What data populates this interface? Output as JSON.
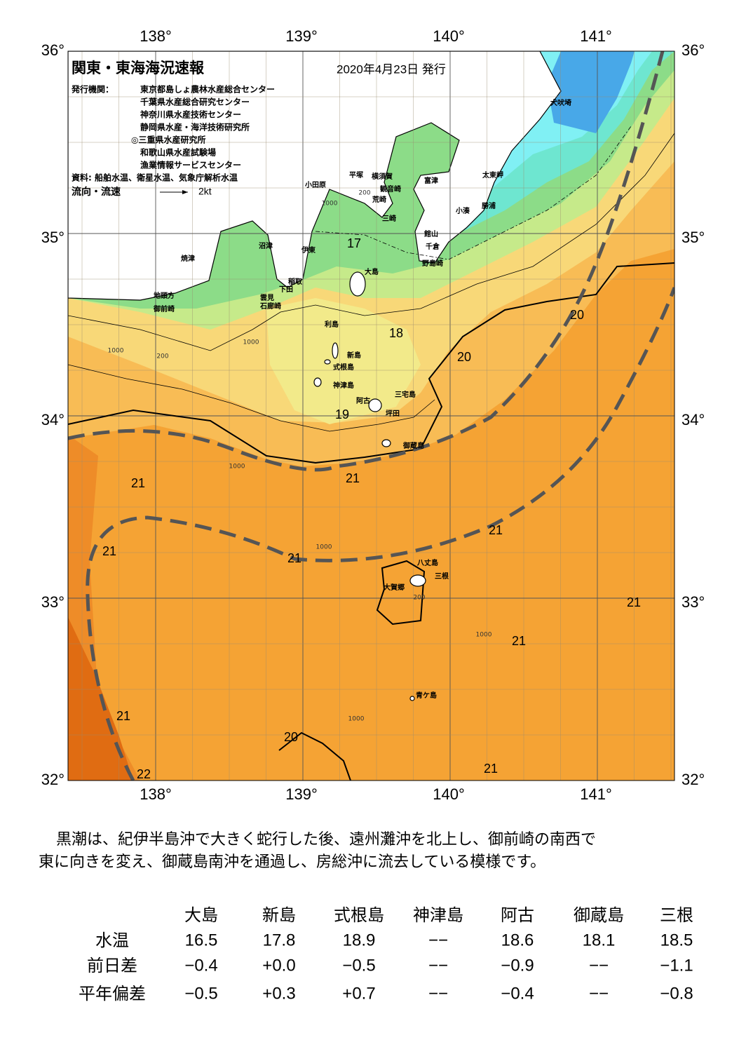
{
  "header": {
    "title": "関東・東海海況速報",
    "date": "2020年4月23日 発行",
    "issuer_label": "発行機関：",
    "issuers": [
      "東京都島しょ農林水産総合センター",
      "千葉県水産総合研究センター",
      "神奈川県水産技術センター",
      "静岡県水産・海洋技術研究所",
      "◎三重県水産研究所",
      "和歌山県水産試験場",
      "漁業情報サービスセンター"
    ],
    "source": "資料: 船舶水温、衛星水温、気象庁解析水温",
    "legend_label": "流向・流速",
    "legend_unit": "2kt"
  },
  "map": {
    "lon_labels": [
      "138°",
      "139°",
      "140°",
      "141°"
    ],
    "lat_labels": [
      "36°",
      "35°",
      "34°",
      "33°",
      "32°"
    ],
    "places": [
      "犬吠埼",
      "太東岬",
      "勝浦",
      "小湊",
      "富津",
      "横須賀",
      "観音崎",
      "平塚",
      "荒崎",
      "三崎",
      "小田原",
      "館山",
      "千倉",
      "野島崎",
      "大島",
      "沼津",
      "伊東",
      "焼津",
      "稲取",
      "下田",
      "雲見",
      "石廊崎",
      "地頭方",
      "御前崎",
      "利島",
      "新島",
      "式根島",
      "神津島",
      "三宅島",
      "阿古",
      "坪田",
      "御蔵島",
      "八丈島",
      "三根",
      "大賀郷",
      "青ケ島"
    ],
    "temperature_labels": [
      "17",
      "18",
      "19",
      "20",
      "20",
      "21",
      "21",
      "21",
      "21",
      "21",
      "21",
      "21",
      "21",
      "20",
      "21",
      "22"
    ],
    "depth_labels": [
      "1000",
      "200",
      "1000",
      "200",
      "1000",
      "1000",
      "1000",
      "1000",
      "200",
      "1000"
    ]
  },
  "description": [
    "黒潮は、紀伊半島沖で大きく蛇行した後、遠州灘沖を北上し、御前崎の南西で",
    "東に向きを変え、御蔵島南沖を通過し、房総沖に流去している模様です。"
  ],
  "table": {
    "columns": [
      "大島",
      "新島",
      "式根島",
      "神津島",
      "阿古",
      "御蔵島",
      "三根"
    ],
    "rows": [
      {
        "label": "水温",
        "values": [
          "16.5",
          "17.8",
          "18.9",
          "−−",
          "18.6",
          "18.1",
          "18.5"
        ]
      },
      {
        "label": "前日差",
        "values": [
          "−0.4",
          "+0.0",
          "−0.5",
          "−−",
          "−0.9",
          "−−",
          "−1.1"
        ]
      },
      {
        "label": "平年偏差",
        "values": [
          "−0.5",
          "+0.3",
          "+0.7",
          "−−",
          "−0.4",
          "−−",
          "−0.8"
        ]
      }
    ]
  }
}
